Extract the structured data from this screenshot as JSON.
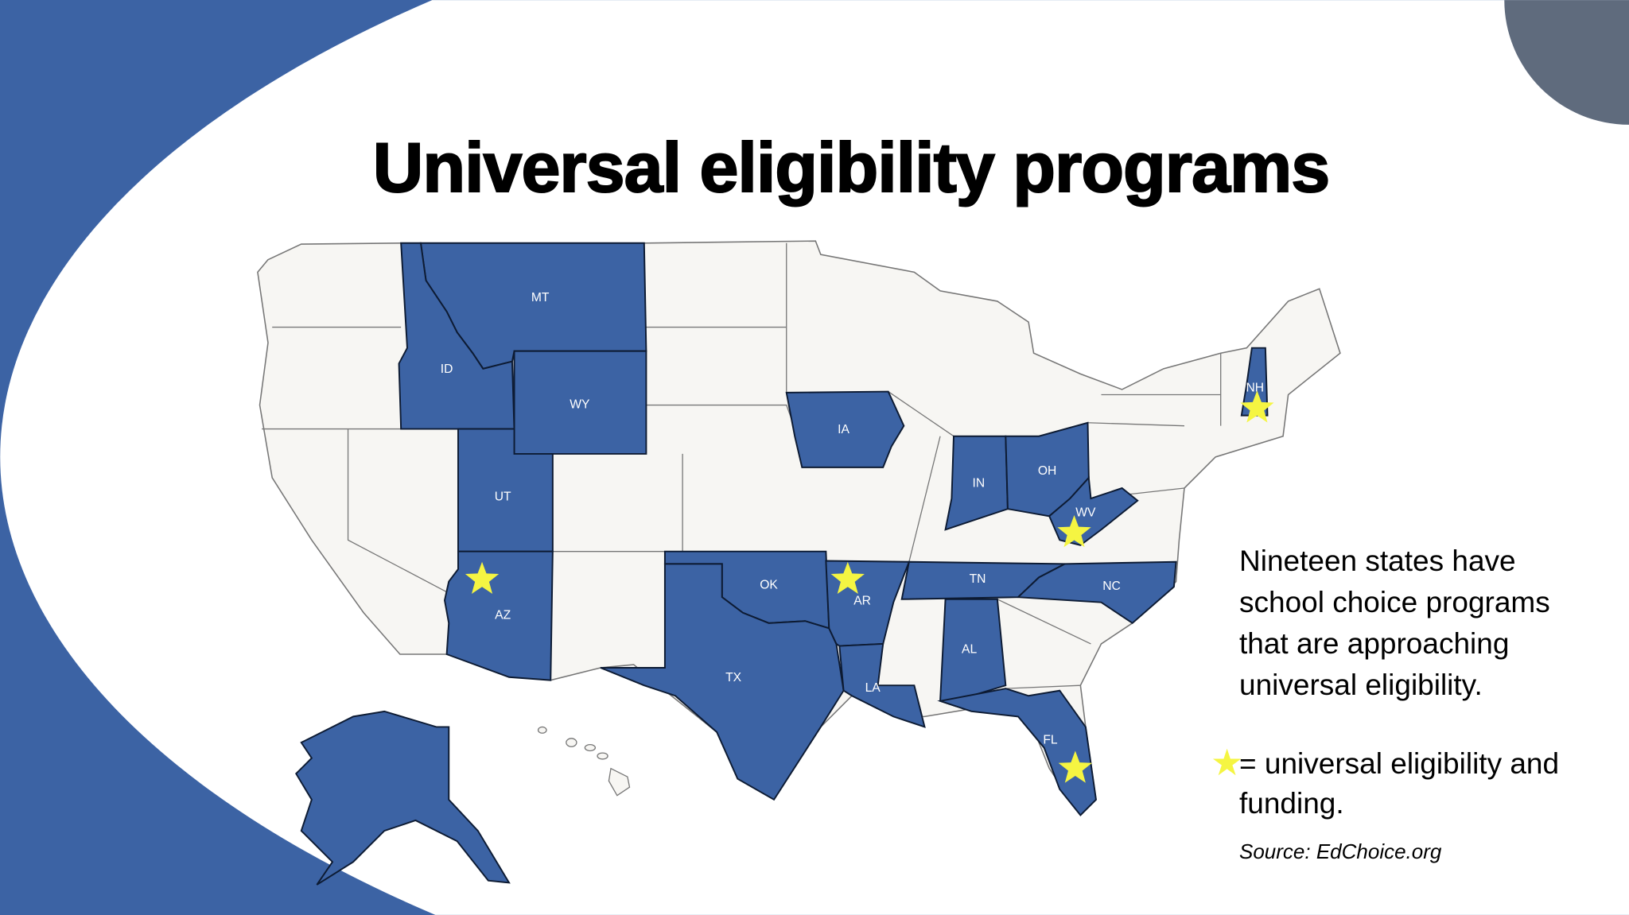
{
  "title": "Universal eligibility programs",
  "description": "Nineteen states have school choice programs that are approaching universal eligibility.",
  "legend": {
    "icon": "star-icon",
    "text": "= universal eligibility and funding."
  },
  "source": "Source: EdChoice.org",
  "colors": {
    "highlight": "#3c63a4",
    "other": "#f7f6f3",
    "star": "#f5f542",
    "accent_circle": "#5f6b7d",
    "background_band": "#3c63a4"
  },
  "states": [
    {
      "abbr": "MT",
      "star": false
    },
    {
      "abbr": "ID",
      "star": false
    },
    {
      "abbr": "WY",
      "star": false
    },
    {
      "abbr": "UT",
      "star": false
    },
    {
      "abbr": "AZ",
      "star": true
    },
    {
      "abbr": "OK",
      "star": false
    },
    {
      "abbr": "TX",
      "star": false
    },
    {
      "abbr": "AR",
      "star": true
    },
    {
      "abbr": "LA",
      "star": false
    },
    {
      "abbr": "IA",
      "star": false
    },
    {
      "abbr": "IN",
      "star": false
    },
    {
      "abbr": "OH",
      "star": false
    },
    {
      "abbr": "WV",
      "star": true
    },
    {
      "abbr": "TN",
      "star": false
    },
    {
      "abbr": "NC",
      "star": false
    },
    {
      "abbr": "AL",
      "star": false
    },
    {
      "abbr": "FL",
      "star": true
    },
    {
      "abbr": "NH",
      "star": true
    },
    {
      "abbr": "AK",
      "star": false
    }
  ]
}
